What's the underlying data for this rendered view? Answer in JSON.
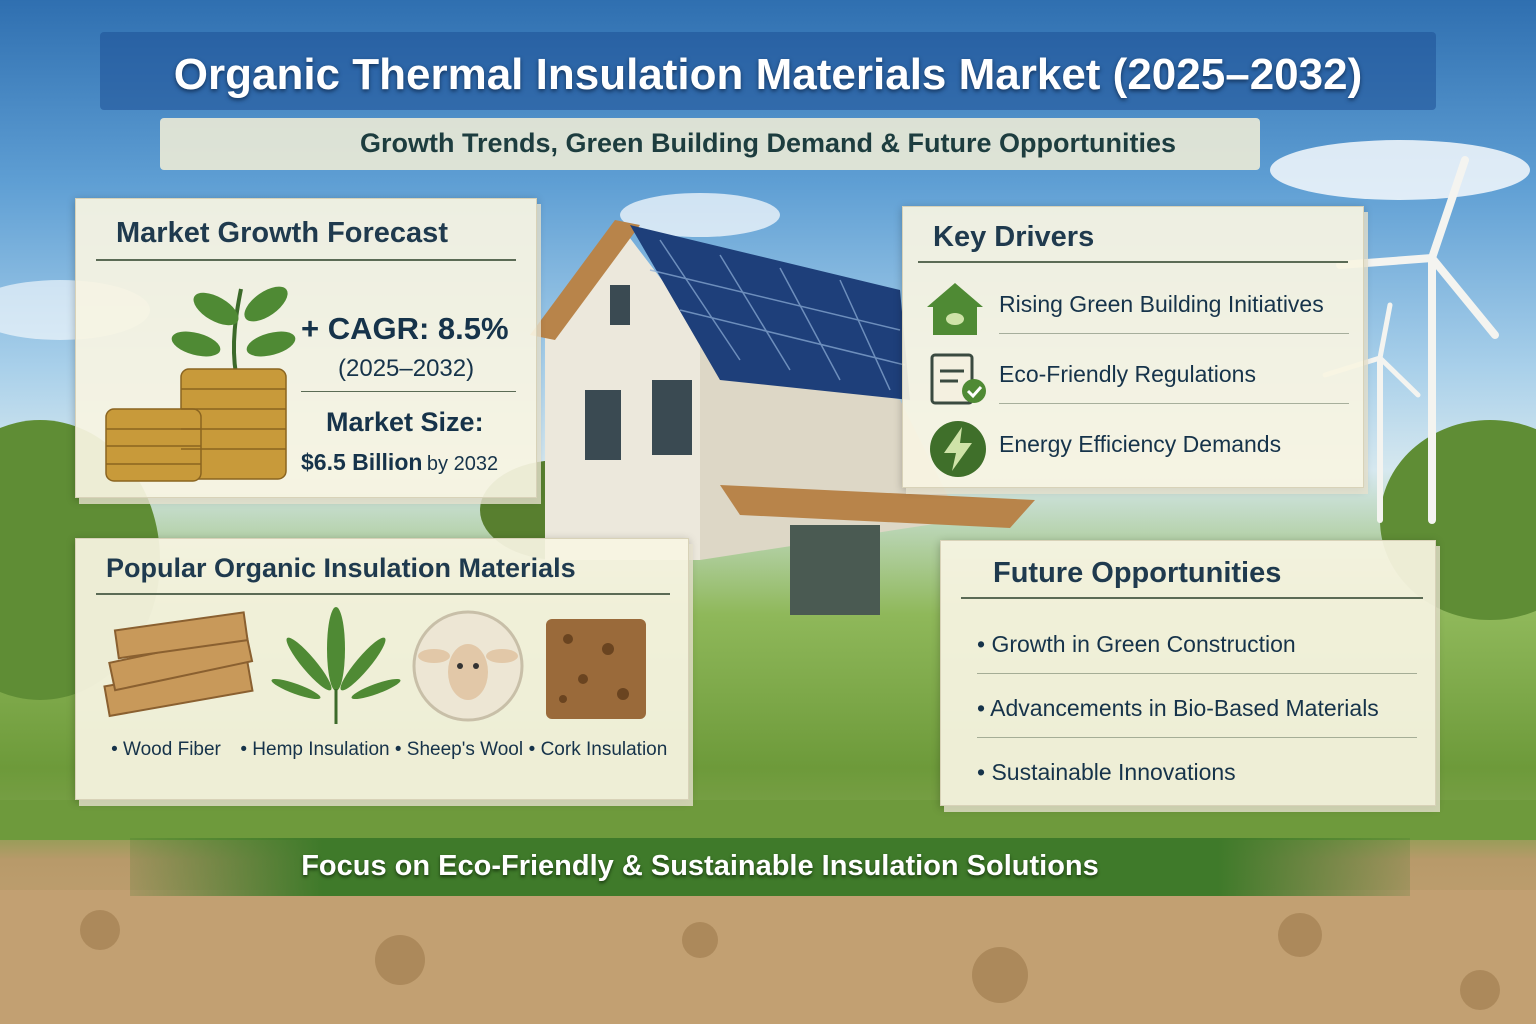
{
  "header": {
    "title": "Organic Thermal Insulation Materials Market (2025–2032)",
    "subtitle": "Growth Trends, Green Building Demand & Future Opportunities"
  },
  "market_growth": {
    "heading": "Market Growth Forecast",
    "cagr": "+ CAGR: 8.5%",
    "period": "(2025–2032)",
    "size_label": "Market Size:",
    "size_value": "$6.5 Billion",
    "size_suffix": "by 2032"
  },
  "key_drivers": {
    "heading": "Key Drivers",
    "items": [
      {
        "icon": "green-house-icon",
        "label": "Rising Green Building Initiatives"
      },
      {
        "icon": "clipboard-check-icon",
        "label": "Eco-Friendly Regulations"
      },
      {
        "icon": "lightning-icon",
        "label": "Energy Efficiency Demands"
      }
    ]
  },
  "materials": {
    "heading": "Popular Organic Insulation Materials",
    "items": [
      "• Wood Fiber",
      "• Hemp Insulation",
      "• Sheep's Wool",
      "• Cork Insulation"
    ]
  },
  "opportunities": {
    "heading": "Future Opportunities",
    "items": [
      "• Growth in Green Construction",
      "• Advancements in Bio-Based Materials",
      "• Sustainable Innovations"
    ]
  },
  "footer": {
    "text": "Focus on Eco-Friendly & Sustainable Insulation Solutions"
  },
  "colors": {
    "panel": "#f8f4e2",
    "heading": "#1f3a4e",
    "accent_green": "#3f7a2a",
    "sky": "#2f6fb0"
  }
}
